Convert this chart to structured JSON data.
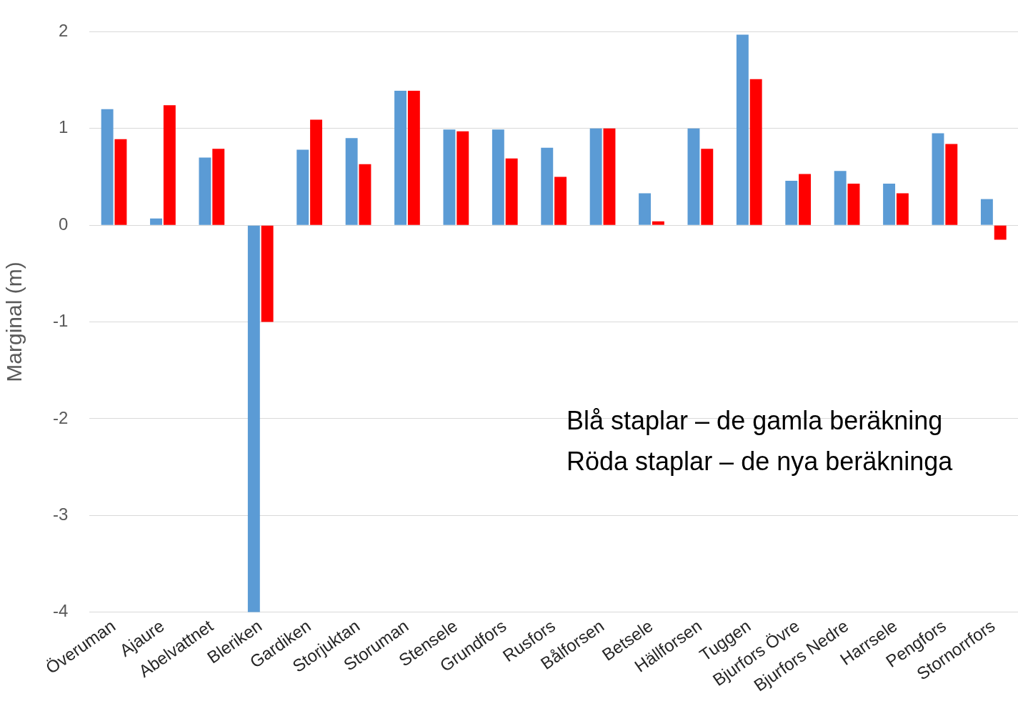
{
  "chart_data": {
    "type": "bar",
    "ylabel": "Marginal (m)",
    "categories": [
      "Överuman",
      "Ajaure",
      "Abelvattnet",
      "Bleriken",
      "Gardiken",
      "Storjuktan",
      "Storuman",
      "Stensele",
      "Grundfors",
      "Rusfors",
      "Bålforsen",
      "Betsele",
      "Hällforsen",
      "Tuggen",
      "Bjurfors Övre",
      "Bjurfors Nedre",
      "Harrsele",
      "Pengfors",
      "Stornorrfors"
    ],
    "series": [
      {
        "color": "#5b9bd5",
        "values": [
          1.2,
          0.07,
          0.7,
          -4.0,
          0.78,
          0.9,
          1.39,
          0.99,
          0.99,
          0.8,
          1.0,
          0.33,
          1.0,
          1.97,
          0.46,
          0.56,
          0.43,
          0.95,
          0.27
        ]
      },
      {
        "color": "#ff0000",
        "values": [
          0.89,
          1.24,
          0.79,
          -1.0,
          1.09,
          0.63,
          1.39,
          0.97,
          0.69,
          0.5,
          1.0,
          0.04,
          0.79,
          1.51,
          0.53,
          0.43,
          0.33,
          0.84,
          -0.15
        ]
      }
    ],
    "ylim": [
      -4,
      2
    ],
    "yticks": [
      -4,
      -3,
      -2,
      -1,
      0,
      1,
      2
    ],
    "grid": "y",
    "legend": false,
    "annotations": [
      "Blå staplar – de gamla beräkning",
      "Röda staplar – de nya beräkninga"
    ]
  }
}
